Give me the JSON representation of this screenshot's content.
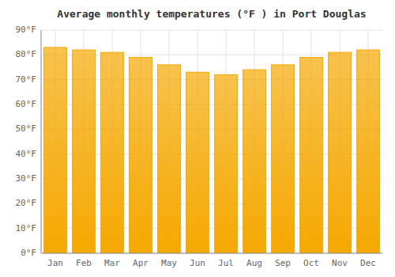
{
  "chart_data": {
    "type": "bar",
    "title": "Average monthly temperatures (°F ) in Port Douglas",
    "categories": [
      "Jan",
      "Feb",
      "Mar",
      "Apr",
      "May",
      "Jun",
      "Jul",
      "Aug",
      "Sep",
      "Oct",
      "Nov",
      "Dec"
    ],
    "values": [
      83,
      82,
      81,
      79,
      76,
      73,
      72,
      74,
      76,
      79,
      81,
      82
    ],
    "color": "#F5A800",
    "ylim": [
      0,
      90
    ],
    "yticks": [
      {
        "value": 0,
        "label": "0°F"
      },
      {
        "value": 10,
        "label": "10°F"
      },
      {
        "value": 20,
        "label": "20°F"
      },
      {
        "value": 30,
        "label": "30°F"
      },
      {
        "value": 40,
        "label": "40°F"
      },
      {
        "value": 50,
        "label": "50°F"
      },
      {
        "value": 60,
        "label": "60°F"
      },
      {
        "value": 70,
        "label": "70°F"
      },
      {
        "value": 80,
        "label": "80°F"
      },
      {
        "value": 90,
        "label": "90°F"
      }
    ],
    "grid": true
  }
}
